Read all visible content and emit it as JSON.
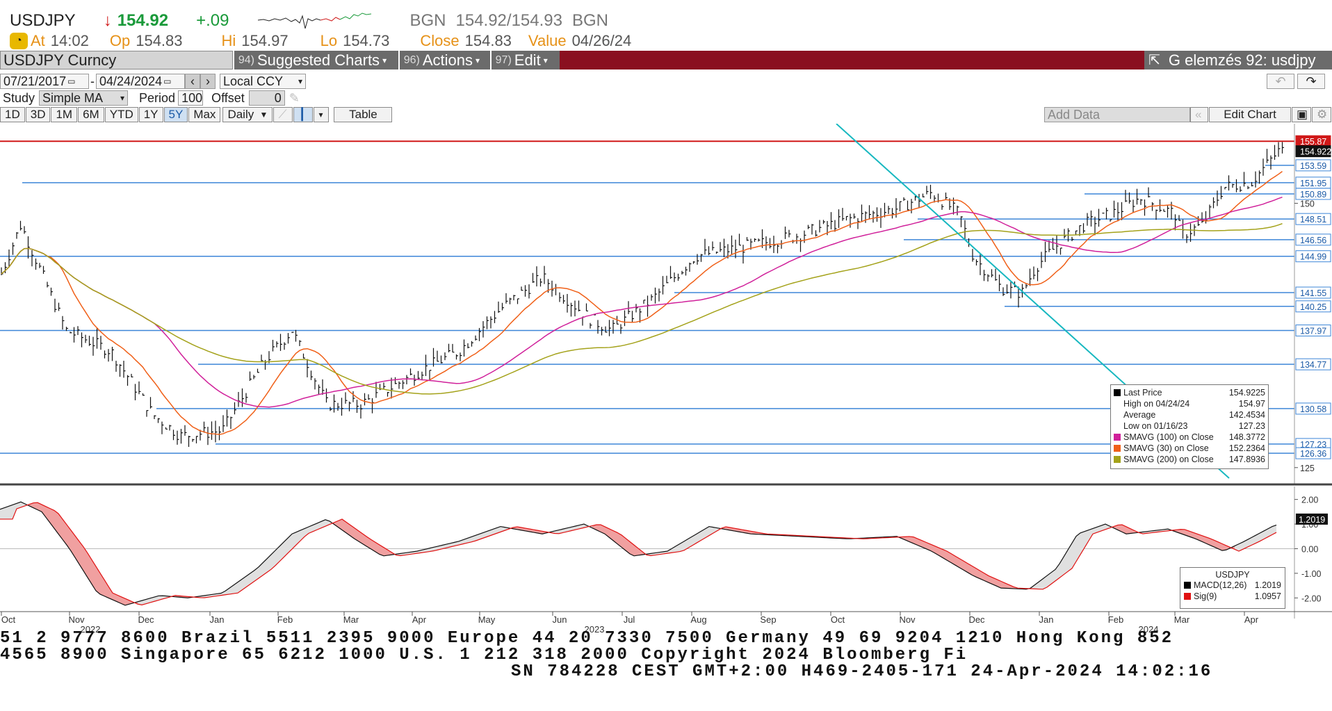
{
  "header": {
    "ticker": "USDJPY",
    "direction_icon": "↓",
    "last": "154.92",
    "change": "+.09",
    "source1": "BGN",
    "bid_ask": "154.92/154.93",
    "source2": "BGN",
    "at_label": "At",
    "at_value": "14:02",
    "op_label": "Op",
    "op_value": "154.83",
    "hi_label": "Hi",
    "hi_value": "154.97",
    "lo_label": "Lo",
    "lo_value": "154.73",
    "close_label": "Close",
    "close_value": "154.83",
    "value_label": "Value",
    "value_value": "04/26/24"
  },
  "menubar": {
    "security": "USDJPY Curncy",
    "suggested_num": "94)",
    "suggested": "Suggested Charts",
    "actions_num": "96)",
    "actions": "Actions",
    "edit_num": "97)",
    "edit": "Edit",
    "title": "G elemzés 92: usdjpy"
  },
  "controls": {
    "start_date": "07/21/2017",
    "dash": "-",
    "end_date": "04/24/2024",
    "currency": "Local CCY",
    "study_label": "Study",
    "study_value": "Simple MA",
    "period_label": "Period",
    "period_value": "100",
    "offset_label": "Offset",
    "offset_value": "0",
    "ranges": [
      "1D",
      "3D",
      "1M",
      "6M",
      "YTD",
      "1Y",
      "5Y",
      "Max"
    ],
    "selected_range": "5Y",
    "frequency": "Daily",
    "table_label": "Table",
    "add_data_placeholder": "Add Data",
    "edit_chart": "Edit Chart"
  },
  "chart_data": {
    "type": "line",
    "price_axis": {
      "ticks": [
        125,
        150
      ],
      "range": [
        124,
        157
      ]
    },
    "level_labels": [
      "155.87",
      "154.9225",
      "153.59",
      "151.95",
      "150.89",
      "150",
      "148.51",
      "146.56",
      "144.99",
      "141.55",
      "140.25",
      "137.97",
      "134.77",
      "130.58",
      "127.23",
      "126.36",
      "125"
    ],
    "months_top": [
      "Oct",
      "Nov",
      "Dec",
      "Jan",
      "Feb",
      "Mar",
      "Apr",
      "May",
      "Jun",
      "Jul",
      "Aug",
      "Sep",
      "Oct",
      "Nov",
      "Dec",
      "Jan",
      "Feb",
      "Mar",
      "Apr"
    ],
    "years": [
      "2022",
      "2023",
      "2024"
    ],
    "legend": {
      "rows": [
        {
          "label": "Last Price",
          "value": "154.9225",
          "color": "#000000"
        },
        {
          "label": "High on 04/24/24",
          "value": "154.97",
          "color": ""
        },
        {
          "label": "Average",
          "value": "142.4534",
          "color": ""
        },
        {
          "label": "Low on 01/16/23",
          "value": "127.23",
          "color": ""
        },
        {
          "label": "SMAVG (100)  on Close",
          "value": "148.3772",
          "color": "#d0209a"
        },
        {
          "label": "SMAVG (30)  on Close",
          "value": "152.2364",
          "color": "#f06018"
        },
        {
          "label": "SMAVG (200)  on Close",
          "value": "147.8936",
          "color": "#a4a21a"
        }
      ]
    },
    "macd": {
      "ticks": [
        "2.00",
        "1.00",
        "0.00",
        "-1.00",
        "-2.00"
      ],
      "current": "1.2019",
      "legend_title": "USDJPY",
      "legend": [
        {
          "label": "MACD(12,26)",
          "value": "1.2019",
          "color": "#000000"
        },
        {
          "label": "Sig(9)",
          "value": "1.0957",
          "color": "#e01010"
        }
      ]
    }
  },
  "footer": {
    "line1": "51 2 9777 8600 Brazil 5511 2395 9000 Europe 44 20 7330 7500 Germany 49 69 9204 1210 Hong Kong 852",
    "line2": " 4565 8900        Singapore 65 6212 1000        U.S. 1 212 318 2000        Copyright 2024 Bloomberg Fi",
    "line3": "SN 784228 CEST GMT+2:00 H469-2405-171 24-Apr-2024 14:02:16"
  }
}
